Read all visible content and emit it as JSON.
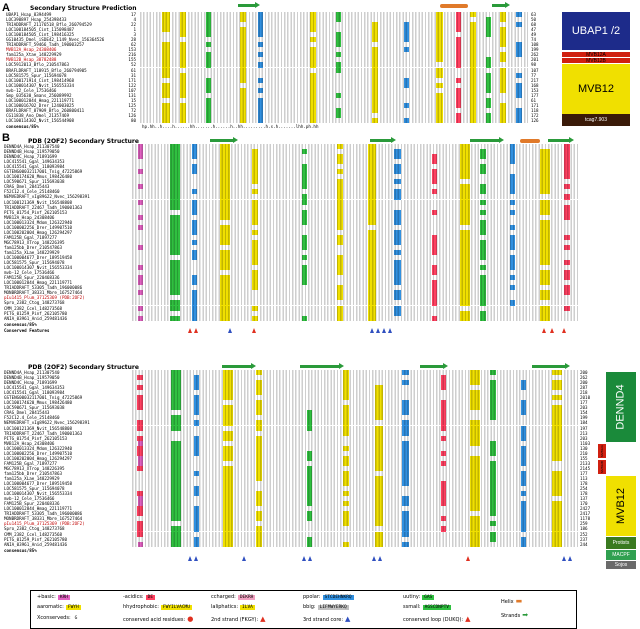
{
  "panelA": {
    "label": "A",
    "header": "Secondary Structure Prediction",
    "names": [
      "UBAP1_Hsap_8394499",
      "LOC390897_Hsap_254398433",
      "TRIADDRAFT_21176518_Bflo_260794529",
      "LOC100184505_Cint_115098487",
      "LOC100184505_Cint_198416325",
      "GG10435_Dmel_iSDE42_1149_Nvec_156364526",
      "TRIADDRAFT_59466_Tadh_190003257",
      "MVB12A_Hsap_24308406",
      "fam125a_Xtae_148229929",
      "MVB12B_Hsap_38782488",
      "LOC5912013_Bflo_210547863",
      "BRAFLDRAFT_118915_Bflo_260794905",
      "LOC581575_Spur_115694078",
      "LOC100171914_Cint_198414968",
      "LOC100014307_Nvit_156553334",
      "mvb-12_Cele_17536466",
      "Smp_035630_Smans_256089992",
      "LOC100012844_Hmag_221119771",
      "LOC100016702_Drer_124003025",
      "BRAFLDRAFT_87909_Bflo_260800411",
      "CG11838_Ano_Dmel_21357469",
      "LOC100114302_Nvit_156544908"
    ],
    "red_rows": [
      7,
      9
    ],
    "start_nums": [
      "17",
      "4",
      "22",
      "1",
      "3",
      "28",
      "62",
      "153",
      "216",
      "155",
      "52",
      "61",
      "31",
      "171",
      "122",
      "107",
      "131",
      "15",
      "125",
      "72",
      "126",
      "80"
    ],
    "end_nums": [
      "63",
      "50",
      "68",
      "47",
      "49",
      "74",
      "108",
      "199",
      "262",
      "201",
      "98",
      "107",
      "77",
      "217",
      "168",
      "153",
      "177",
      "61",
      "171",
      "118",
      "172",
      "126"
    ],
    "consensus_label": "consensus/85%",
    "consensus_seq": "hp.hh..h....h......hh.......h......h..hh.........h.s.h.......lhh.ph.hh",
    "side_blocks": [
      {
        "label": "UBAP1 /2",
        "color": "#1d2b8a",
        "text_color": "#ffffff"
      },
      {
        "label": "MVB12A",
        "color": "#d02010",
        "text_color": "#000000"
      },
      {
        "label": "MVB12B",
        "color": "#d02010",
        "text_color": "#000000"
      },
      {
        "label": "MVB12",
        "color": "#f0e000",
        "text_color": "#000000"
      },
      {
        "label": "tcag7.903",
        "color": "#3a1a08",
        "text_color": "#ffffff"
      }
    ]
  },
  "panelB": {
    "label": "B",
    "header1": "PDB (2OF2) Secondary Structure",
    "header2": "PDB (2OF2) Secondary Structure",
    "names1": [
      "DENND4A_Hsap_211307540",
      "DENND4B_Hsap_119579050",
      "DENND4C_Hsap_71891699",
      "LOC415541_Ggal_149634353",
      "LOC415541_Ggal_118093984",
      "GSTENG00032117001_Tnig_47225869",
      "LOC100174620_Mmus_198426480",
      "LOC590671_Spur_115693038",
      "CRAG_Dmel_28415443",
      "F52C12.4_Cele_25148460",
      "NEMVEDRAFT_vIg89622_Nvec_156298391",
      "LOC100121369_Nvit_156548808",
      "TRIADDRAFT_22467_Tadh_190001363",
      "PITG_01754_Pinf_262105153",
      "MVB12A_Hsap_24308406",
      "LOC100013324_Mdom_126322940",
      "LOC100002256_Drer_149907510",
      "LOC100202004_Hmag_126294297",
      "FAM125B_Ggal_71897277",
      "MGC78913_XTrop_148226395",
      "fam125bb_Drer_210547863",
      "fam125a_XLae_148229929",
      "LOC100004677_Drer_189519458",
      "LOC581575_Spur_115694078",
      "LOC100014307_Nvit_156553334",
      "mvb-12_Cele_17536466",
      "FAM125B_Spur_220468336",
      "LOC100012844_Hmag_221119771",
      "TRIADDRAFT_53305_Tadh_196000086",
      "MONBRDRAFT_38331_Mbre_167527464",
      "pIu1415_Plum_37125369 (PDB:2OF2)",
      "Spro_2382_Ctog_148273768",
      "CMM_2382_Ccel_148273568",
      "PITG_01259_Pinf_262105780",
      "ANIA_03961_Anid_259481436"
    ],
    "red_rows1": [
      30
    ],
    "consensus_label": "consensus/85%",
    "conserved_label": "Conserved Features",
    "names2": [
      "DENND4A_Hsap_211307540",
      "DENND4B_Hsap_119579050",
      "DENND4C_Hsap_71891699",
      "LOC415541_Ggal_149634353",
      "LOC415541_Ggal_118093984",
      "GSTENG00032117001_Tnig_47225869",
      "LOC100174620_Mmus_198426480",
      "LOC590671_Spur_115693038",
      "CRAG_Dmel_28415443",
      "F52C12.4_Cele_25148460",
      "NEMVEDRAFT_vIg89622_Nvec_156298391",
      "LOC100121369_Nvit_156548808",
      "TRIADDRAFT_22467_Tadh_190001363",
      "PITG_01754_Pinf_262105153",
      "MVB12A_Hsap_24308406",
      "LOC100013324_Mdom_126322940",
      "LOC100002256_Drer_149907510",
      "LOC100202004_Hmag_126294297",
      "FAM125B_Ggal_71897277",
      "MGC78913_XTrop_148226395",
      "fam125bb_Drer_210547863",
      "fam125a_XLae_148229929",
      "LOC100004677_Drer_189519458",
      "LOC581575_Spur_115694078",
      "LOC100014307_Nvit_156553334",
      "mvb-12_Cele_17536466",
      "FAM125B_Spur_220468336",
      "LOC100012844_Hmag_221119771",
      "TRIADDRAFT_53305_Tadh_196000086",
      "MONBRDRAFT_38331_Mbre_167527464",
      "pIu1415_Plum_37125369 (PDB:2OF2)",
      "Spro_2382_Ctog_148273768",
      "CMM_2382_Ccel_148273568",
      "PITG_01259_Pinf_262105780",
      "ANIA_03961_Anid_259481436"
    ],
    "red_rows2": [
      30
    ],
    "end_nums2": [
      "200",
      "262",
      "200",
      "287",
      "218",
      "2010",
      "177",
      "203",
      "154",
      "199",
      "184",
      "197",
      "213",
      "203",
      "1103",
      "130",
      "210",
      "155",
      "2133",
      "2145",
      "177",
      "113",
      "178",
      "254",
      "178",
      "137",
      "170",
      "2427",
      "2417",
      "1178",
      "259",
      "186",
      "252",
      "237",
      "244"
    ],
    "side_blocks": [
      {
        "label": "DENND4",
        "color": "#1a8a3a",
        "text_color": "#ffffff"
      },
      {
        "label": "MVB12",
        "color": "#f0e000",
        "text_color": "#000000"
      },
      {
        "label": "Protists",
        "color": "#3a7a20",
        "text_color": "#ffffff"
      },
      {
        "label": "MACPF",
        "color": "#30a050",
        "text_color": "#ffffff"
      },
      {
        "label": "Sojos",
        "color": "#6a6a6a",
        "text_color": "#ffffff"
      }
    ],
    "small_blocks": [
      {
        "label": "MVB12A",
        "color": "#d02010"
      },
      {
        "label": "MVB12B",
        "color": "#d02010"
      }
    ]
  },
  "legend": {
    "items": [
      {
        "label": "+basic:",
        "chip": "KRH",
        "chip_color": "#e060c0"
      },
      {
        "label": "-acidics:",
        "chip": "DE",
        "chip_color": "#ff4060"
      },
      {
        "label": "ccharged:",
        "chip": "DEKRH",
        "chip_color": "#f0a0c0"
      },
      {
        "label": "ppolar:",
        "chip": "STCDEHNKRQ",
        "chip_color": "#3090e0"
      },
      {
        "label": "uutiny:",
        "chip": "GAS",
        "chip_color": "#30c040"
      },
      {
        "label": "aaromatic:",
        "chip": "FWYH",
        "chip_color": "#f0e000"
      },
      {
        "label": "hhydrophobic:",
        "chip": "FWYILVACMU",
        "chip_color": "#f0e000"
      },
      {
        "label": "laliphatics:",
        "chip": "ILVA",
        "chip_color": "#f0e000"
      },
      {
        "label": "bbig:",
        "chip": "LIFMWYERKQ",
        "chip_color": "#c0c0c0"
      },
      {
        "label": "ssmall:",
        "chip": "AGSCDNPTV",
        "chip_color": "#30c040"
      },
      {
        "label": "Xconserveds:",
        "chip": "G",
        "chip_color": "#ffffff"
      },
      {
        "label": "conserved acid residues:",
        "sym": "●",
        "sym_color": "#e03020"
      },
      {
        "label": "2nd strand (FKGY):",
        "sym": "▲",
        "sym_color": "#e03020"
      },
      {
        "label": "3rd strand core:",
        "sym": "▲",
        "sym_color": "#3050c0"
      },
      {
        "label": "conserved loop (DUKQ):",
        "sym": "▲",
        "sym_color": "#e03020"
      },
      {
        "label": "Helix",
        "sym": "▬",
        "sym_color": "#e07a2a"
      },
      {
        "label": "Strands",
        "sym": "➡",
        "sym_color": "#2a9a3a"
      }
    ]
  }
}
